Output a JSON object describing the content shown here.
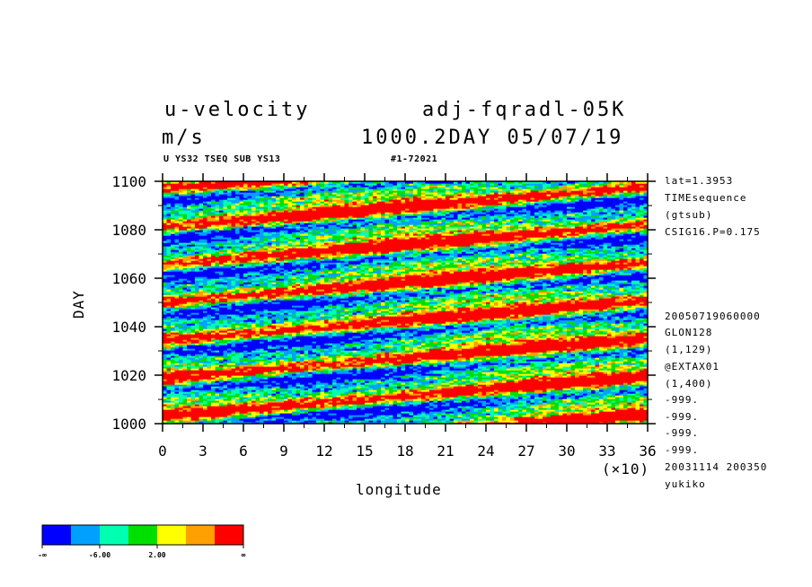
{
  "header": {
    "title": "u-velocity",
    "units": "m/s",
    "experiment": "adj-fqradl-05K",
    "time_info": "1000.2DAY 05/07/19",
    "sub_left": "U YS32 TSEQ SUB YS13",
    "sub_right": "#1-72021"
  },
  "side_info": {
    "top": [
      "lat=1.3953",
      "TIMEsequence",
      "(gtsub)",
      "CSIG16.P=0.175"
    ],
    "bottom": [
      "20050719060000",
      "GLON128",
      "(1,129)",
      "@EXTAX01",
      "(1,400)",
      "-999.",
      "-999.",
      "-999.",
      "-999.",
      "20031114 200350",
      "yukiko"
    ]
  },
  "chart_data": {
    "type": "heatmap",
    "xlabel": "longitude",
    "ylabel": "DAY",
    "x_scale_label": "(×10)",
    "xlim": [
      0,
      36
    ],
    "ylim": [
      1000,
      1100
    ],
    "xticks": [
      "0",
      "3",
      "6",
      "9",
      "12",
      "15",
      "18",
      "21",
      "24",
      "27",
      "30",
      "33",
      "36"
    ],
    "yticks": [
      "1000",
      "1020",
      "1040",
      "1060",
      "1080",
      "1100"
    ],
    "colorbar": {
      "colors": [
        "#0000ff",
        "#00a0ff",
        "#00ffb0",
        "#00e000",
        "#ffff00",
        "#ffa000",
        "#ff0000"
      ],
      "labels": [
        "-∞",
        "-6.00",
        "2.00",
        "∞"
      ]
    }
  }
}
